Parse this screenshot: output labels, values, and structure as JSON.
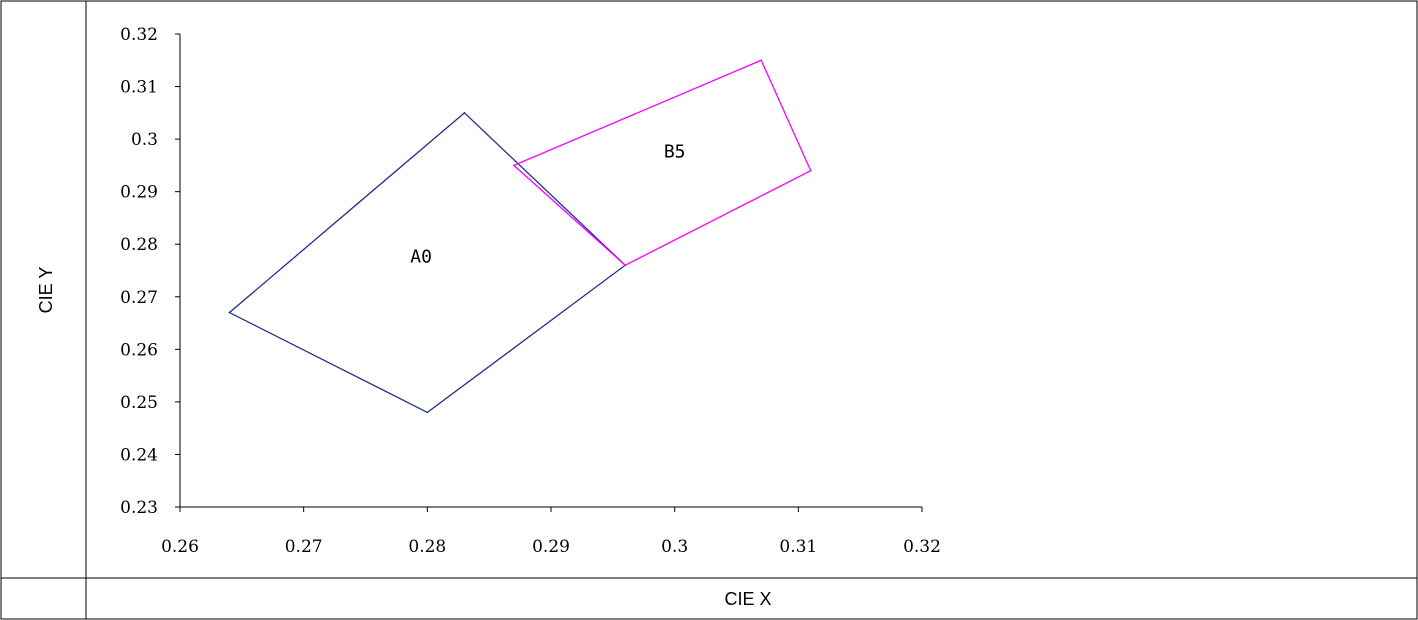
{
  "chart_data": {
    "type": "scatter",
    "xlabel": "CIE X",
    "ylabel": "CIE Y",
    "xlim": [
      0.26,
      0.32
    ],
    "ylim": [
      0.23,
      0.32
    ],
    "x_ticks": [
      "0.26",
      "0.27",
      "0.28",
      "0.29",
      "0.3",
      "0.31",
      "0.32"
    ],
    "y_ticks": [
      "0.23",
      "0.24",
      "0.25",
      "0.26",
      "0.27",
      "0.28",
      "0.29",
      "0.3",
      "0.31",
      "0.32"
    ],
    "grid": false,
    "series": [
      {
        "name": "A0",
        "color": "#1f2d8c",
        "points": [
          [
            0.264,
            0.267
          ],
          [
            0.283,
            0.305
          ],
          [
            0.296,
            0.276
          ],
          [
            0.28,
            0.248
          ]
        ],
        "label_pos": [
          0.2795,
          0.2765
        ]
      },
      {
        "name": "B5",
        "color": "#ff00ff",
        "points": [
          [
            0.287,
            0.295
          ],
          [
            0.307,
            0.315
          ],
          [
            0.311,
            0.294
          ],
          [
            0.296,
            0.276
          ]
        ],
        "label_pos": [
          0.3,
          0.2965
        ]
      }
    ]
  }
}
